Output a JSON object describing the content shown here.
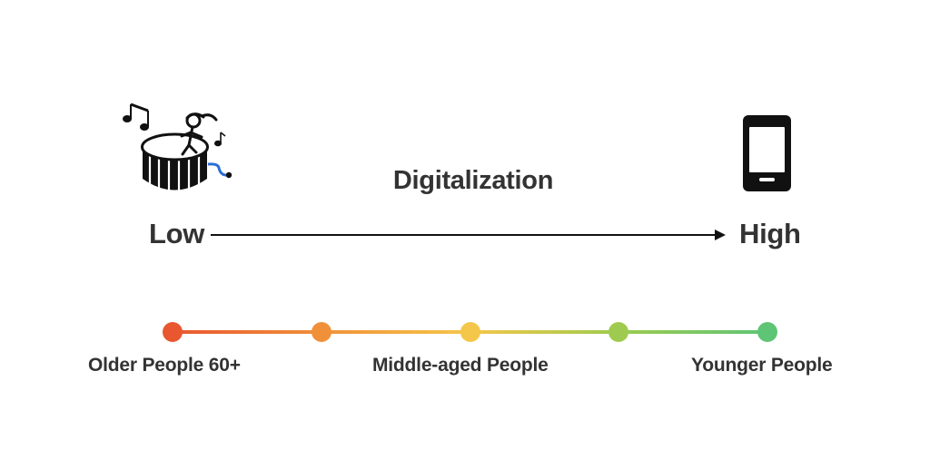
{
  "title": "Digitalization",
  "scale": {
    "low_label": "Low",
    "high_label": "High"
  },
  "icons": {
    "low": "drum-with-music-notes-icon",
    "high": "smartphone-icon"
  },
  "age_groups": {
    "older": "Older People 60+",
    "middle": "Middle-aged People",
    "younger": "Younger People"
  },
  "gradient_stops": [
    "#e8572f",
    "#f0913a",
    "#f4c74a",
    "#9ecb4f",
    "#5ec476"
  ],
  "colors": {
    "text": "#333333",
    "arrow": "#111111"
  }
}
